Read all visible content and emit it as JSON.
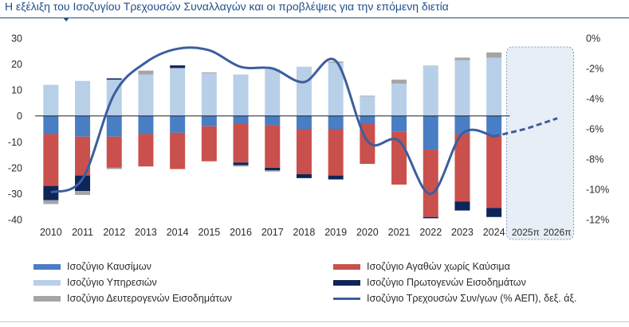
{
  "title": "Η εξέλιξη του Ισοζυγίου Τρεχουσών Συναλλαγών και οι προβλέψεις για την επόμενη διετία",
  "chart_data": {
    "type": "bar",
    "stacked": true,
    "title": "Η εξέλιξη του Ισοζυγίου Τρεχουσών Συναλλαγών και οι προβλέψεις για την επόμενη διετία",
    "categories": [
      "2010",
      "2011",
      "2012",
      "2013",
      "2014",
      "2015",
      "2016",
      "2017",
      "2018",
      "2019",
      "2020",
      "2021",
      "2022",
      "2023",
      "2024",
      "2025π",
      "2026π"
    ],
    "ylim": [
      -40,
      30
    ],
    "yticks": [
      30,
      20,
      10,
      0,
      -10,
      -20,
      -30,
      -40
    ],
    "y2lim": [
      -12,
      0
    ],
    "y2ticks": [
      "0%",
      "-2%",
      "-4%",
      "-6%",
      "-8%",
      "-10%",
      "-12%"
    ],
    "grid": false,
    "legend_position": "bottom",
    "forecast_categories": [
      "2025π",
      "2026π"
    ],
    "series": [
      {
        "name": "Ισοζύγιο  Καυσίμων",
        "color": "#4a7ec4",
        "values": [
          -7,
          -8,
          -8,
          -7,
          -6.5,
          -4,
          -3,
          -3.5,
          -5,
          -5,
          -3,
          -6,
          -13,
          -7,
          -7.5,
          null,
          null
        ]
      },
      {
        "name": "Ισοζύγιο Αγαθών χωρίς Καύσιμα",
        "color": "#c9504c",
        "values": [
          -20,
          -15,
          -12,
          -12.5,
          -14,
          -13.5,
          -15,
          -16.5,
          -17.5,
          -18,
          -15.5,
          -20.5,
          -26,
          -26,
          -28,
          null,
          null
        ]
      },
      {
        "name": "Ισοζύγιο Υπηρεσιών",
        "color": "#b8cfe8",
        "values": [
          12,
          13.5,
          14,
          16,
          18.5,
          16.5,
          16,
          18,
          19,
          20.5,
          7.5,
          12.5,
          19.5,
          21.5,
          22.5,
          null,
          null
        ]
      },
      {
        "name": "Ισοζύγιο Πρωτογενών Εισοδημάτων",
        "color": "#0d2559",
        "values": [
          -5.5,
          -6,
          0.5,
          0,
          1,
          0,
          -1,
          -1,
          -1.5,
          -1.5,
          0,
          0,
          -0.5,
          -3.5,
          -3.5,
          null,
          null
        ]
      },
      {
        "name": "Ισοζύγιο Δευτερογενών Εισοδημάτων",
        "color": "#a5a5a5",
        "values": [
          -1.5,
          -1.5,
          -0.5,
          1.5,
          0,
          0.3,
          -0.5,
          -0.5,
          0,
          0.5,
          0.3,
          1.5,
          0,
          1,
          2,
          null,
          null
        ]
      },
      {
        "name": "Ισοζύγιο Τρεχουσών Συν/γων (% ΑΕΠ), δεξ. άξ.",
        "color": "#3c5e9e",
        "axis": "right",
        "values": [
          -10.2,
          -9.3,
          -3.7,
          -1.6,
          -0.7,
          -0.8,
          -1.9,
          -2.0,
          -2.9,
          -1.5,
          -6.8,
          -6.8,
          -10.3,
          -6.3,
          -6.5,
          -6.0,
          -5.3
        ]
      }
    ]
  }
}
